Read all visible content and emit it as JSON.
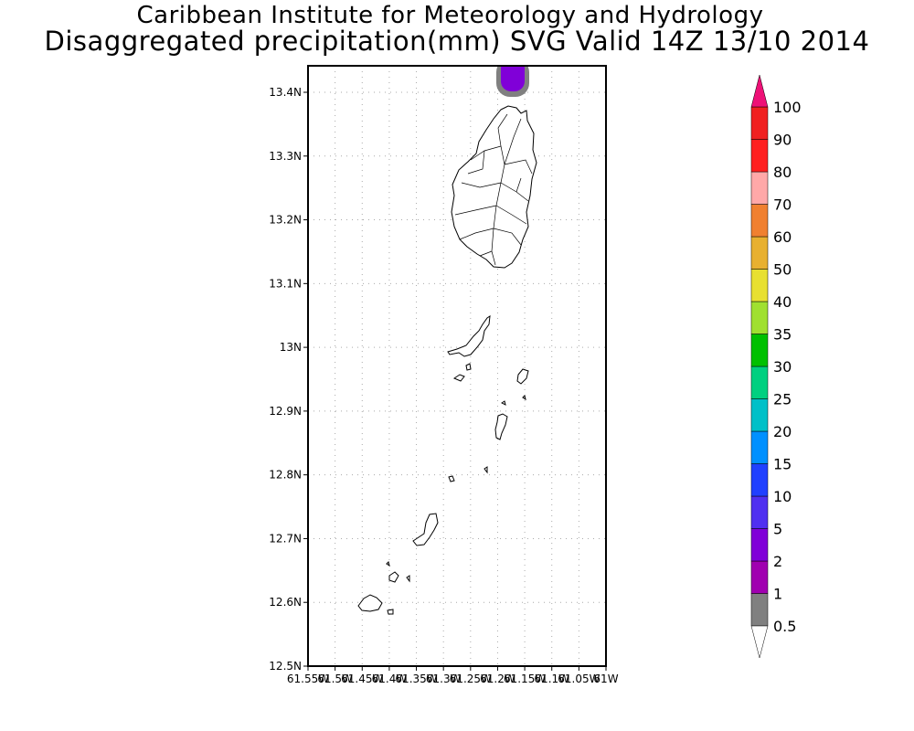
{
  "header": {
    "institute": "Caribbean Institute for Meteorology and Hydrology",
    "product": "Disaggregated precipitation(mm) SVG Valid 14Z 13/10 2014"
  },
  "map": {
    "lat_ticks": [
      "12.5N",
      "12.6N",
      "12.7N",
      "12.8N",
      "12.9N",
      "13N",
      "13.1N",
      "13.2N",
      "13.3N",
      "13.4N"
    ],
    "lon_ticks": [
      "61.55W",
      "61.5W",
      "61.45W",
      "61.4W",
      "61.35W",
      "61.3W",
      "61.25W",
      "61.2W",
      "61.15W",
      "61.1W",
      "61.05W",
      "61W"
    ],
    "lat_range": [
      12.5,
      13.44
    ],
    "lon_range": [
      -61.55,
      -61.0
    ]
  },
  "colorbar": {
    "levels": [
      "0.5",
      "1",
      "2",
      "5",
      "10",
      "15",
      "20",
      "25",
      "30",
      "35",
      "40",
      "50",
      "60",
      "70",
      "80",
      "90",
      "100"
    ],
    "colors": [
      "#808080",
      "#a000b0",
      "#8000d8",
      "#5030f0",
      "#2040ff",
      "#0090ff",
      "#00c0c8",
      "#00d080",
      "#00c000",
      "#a0e030",
      "#e8e030",
      "#e8b030",
      "#f08030",
      "#ffa8a8",
      "#ff2020",
      "#f02020",
      "#ff4040"
    ],
    "top_arrow_color": "#ee1177",
    "bottom_arrow_color": "#ffffff"
  },
  "precip_blob": {
    "lon": -61.15,
    "lat": 13.43,
    "core_color": "#8000d8",
    "edge_color": "#808080"
  }
}
